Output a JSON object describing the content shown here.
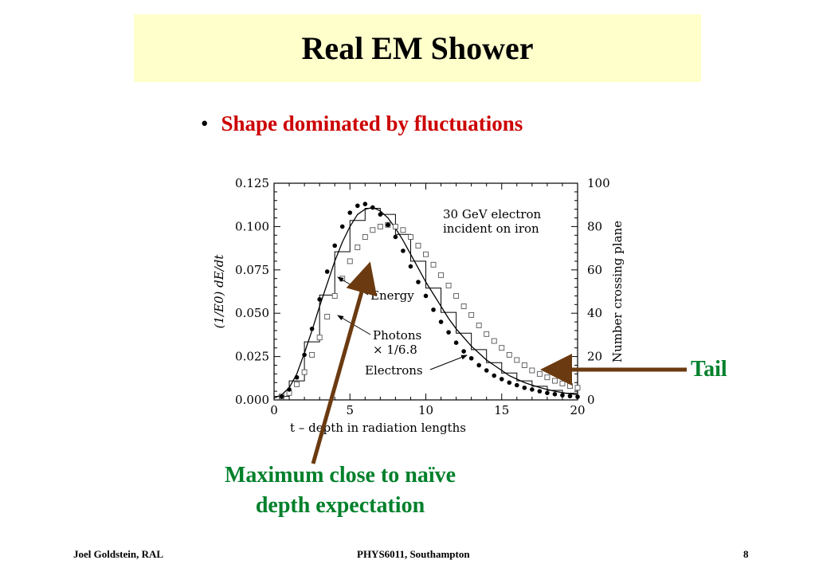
{
  "slide": {
    "title": "Real EM Shower",
    "bullet": "Shape dominated by fluctuations",
    "tail_label": "Tail",
    "max_note_line1": "Maximum close to naïve",
    "max_note_line2": "depth expectation",
    "arrow_color": "#6b3a10",
    "annotation_color": "#00802b",
    "bullet_color": "#cc0000",
    "title_bg": "#ffffcc"
  },
  "footer": {
    "left": "Joel Goldstein, RAL",
    "center": "PHYS6011, Southampton",
    "page": "8"
  },
  "chart_data": {
    "type": "line",
    "xlabel": "t – depth in radiation lengths",
    "ylabel": "(1/E0) dE/dt",
    "y2label": "Number crossing plane",
    "xlim": [
      0,
      20
    ],
    "ylim": [
      0,
      0.125
    ],
    "y2lim": [
      0,
      100
    ],
    "xticks": [
      "0",
      "5",
      "10",
      "15",
      "20"
    ],
    "yticks": [
      "0.000",
      "0.025",
      "0.050",
      "0.075",
      "0.100",
      "0.125"
    ],
    "y2ticks": [
      "0",
      "20",
      "40",
      "60",
      "80",
      "100"
    ],
    "legend_text_line1": "30 GeV electron",
    "legend_text_line2": "incident on iron",
    "annotations": {
      "energy": "Energy",
      "photons_line1": "Photons",
      "photons_line2": "× 1/6.8",
      "electrons": "Electrons"
    },
    "series": [
      {
        "name": "Energy",
        "style": "histogram-and-curve",
        "x": [
          0,
          0.5,
          1,
          1.5,
          2,
          2.5,
          3,
          3.5,
          4,
          4.5,
          5,
          5.5,
          6,
          6.5,
          7,
          7.5,
          8,
          8.5,
          9,
          9.5,
          10,
          10.5,
          11,
          11.5,
          12,
          12.5,
          13,
          13.5,
          14,
          14.5,
          15,
          15.5,
          16,
          16.5,
          17,
          17.5,
          18,
          18.5,
          19,
          19.5,
          20
        ],
        "values": [
          0.001,
          0.003,
          0.007,
          0.015,
          0.027,
          0.04,
          0.054,
          0.067,
          0.08,
          0.091,
          0.1,
          0.107,
          0.11,
          0.111,
          0.109,
          0.105,
          0.099,
          0.092,
          0.084,
          0.076,
          0.068,
          0.061,
          0.054,
          0.047,
          0.041,
          0.036,
          0.031,
          0.027,
          0.023,
          0.02,
          0.017,
          0.014,
          0.012,
          0.01,
          0.0085,
          0.0072,
          0.006,
          0.005,
          0.0042,
          0.0035,
          0.003
        ]
      },
      {
        "name": "Photons × 1/6.8",
        "style": "open-squares",
        "x": [
          0.5,
          1,
          1.5,
          2,
          2.5,
          3,
          3.5,
          4,
          4.5,
          5,
          5.5,
          6,
          6.5,
          7,
          7.5,
          8,
          8.5,
          9,
          9.5,
          10,
          10.5,
          11,
          11.5,
          12,
          12.5,
          13,
          13.5,
          14,
          14.5,
          15,
          15.5,
          16,
          16.5,
          17,
          17.5,
          18,
          18.5,
          19,
          19.5,
          20
        ],
        "values": [
          0.002,
          0.004,
          0.009,
          0.016,
          0.026,
          0.036,
          0.048,
          0.06,
          0.07,
          0.08,
          0.088,
          0.094,
          0.098,
          0.1,
          0.101,
          0.1,
          0.098,
          0.094,
          0.089,
          0.084,
          0.078,
          0.072,
          0.066,
          0.06,
          0.054,
          0.049,
          0.043,
          0.038,
          0.034,
          0.03,
          0.026,
          0.023,
          0.02,
          0.017,
          0.015,
          0.013,
          0.011,
          0.0095,
          0.008,
          0.007
        ]
      },
      {
        "name": "Electrons",
        "style": "filled-dots",
        "x": [
          0.5,
          1,
          1.5,
          2,
          2.5,
          3,
          3.5,
          4,
          4.5,
          5,
          5.5,
          6,
          6.5,
          7,
          7.5,
          8,
          8.5,
          9,
          9.5,
          10,
          10.5,
          11,
          11.5,
          12,
          12.5,
          13,
          13.5,
          14,
          14.5,
          15,
          15.5,
          16,
          16.5,
          17,
          17.5,
          18,
          18.5,
          19,
          19.5,
          20
        ],
        "values": [
          0.002,
          0.006,
          0.013,
          0.026,
          0.041,
          0.058,
          0.074,
          0.089,
          0.1,
          0.108,
          0.112,
          0.113,
          0.111,
          0.107,
          0.101,
          0.094,
          0.086,
          0.077,
          0.068,
          0.06,
          0.052,
          0.045,
          0.039,
          0.033,
          0.028,
          0.024,
          0.02,
          0.017,
          0.014,
          0.012,
          0.01,
          0.0085,
          0.007,
          0.006,
          0.005,
          0.004,
          0.0033,
          0.0027,
          0.0022,
          0.0018
        ]
      }
    ]
  }
}
